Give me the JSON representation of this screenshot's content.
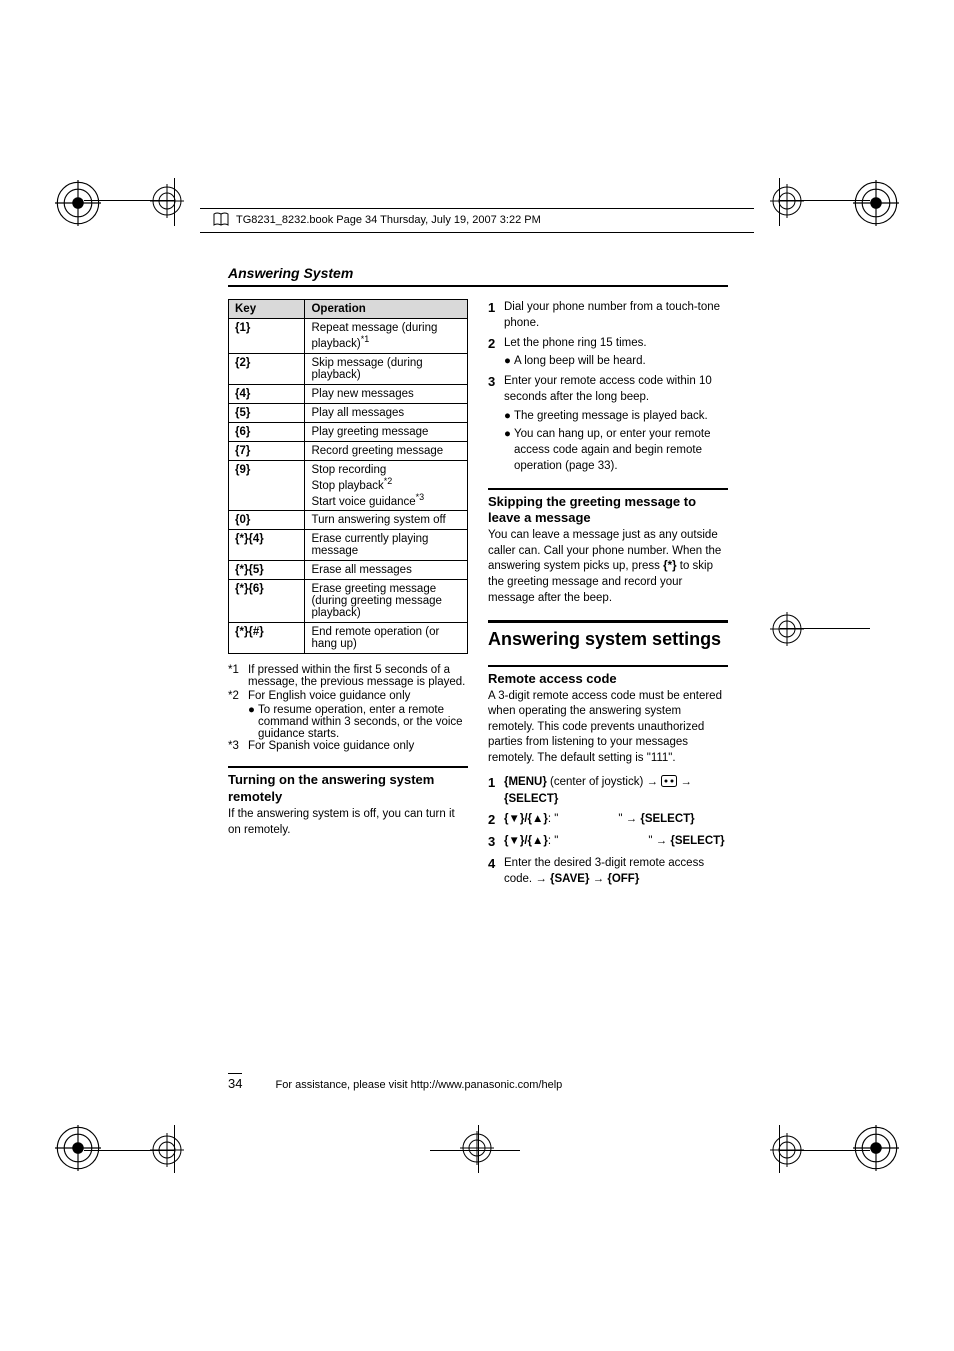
{
  "book_header": "TG8231_8232.book  Page 34  Thursday, July 19, 2007  3:22 PM",
  "section_title": "Answering System",
  "table": {
    "head_key": "Key",
    "head_op": "Operation",
    "rows": [
      {
        "key": "{1}",
        "op_html": "Repeat message (during playback)<span class='sup'>*1</span>"
      },
      {
        "key": "{2}",
        "op_html": "Skip message (during playback)"
      },
      {
        "key": "{4}",
        "op_html": "Play new messages"
      },
      {
        "key": "{5}",
        "op_html": "Play all messages"
      },
      {
        "key": "{6}",
        "op_html": "Play greeting message"
      },
      {
        "key": "{7}",
        "op_html": "Record greeting message"
      },
      {
        "key": "{9}",
        "op_html": "Stop recording<br>Stop playback<span class='sup'>*2</span><br>Start voice guidance<span class='sup'>*3</span>"
      },
      {
        "key": "{0}",
        "op_html": "Turn answering system off"
      },
      {
        "key": "{*}{4}",
        "op_html": "Erase currently playing message"
      },
      {
        "key": "{*}{5}",
        "op_html": "Erase all messages"
      },
      {
        "key": "{*}{6}",
        "op_html": "Erase greeting message (during greeting message playback)"
      },
      {
        "key": "{*}{#}",
        "op_html": "End remote operation (or hang up)"
      }
    ]
  },
  "footnotes": {
    "f1_tag": "*1",
    "f1": "If pressed within the first 5 seconds of a message, the previous message is played.",
    "f2_tag": "*2",
    "f2": "For English voice guidance only",
    "f2_sub": "To resume operation, enter a remote command within 3 seconds, or the voice guidance starts.",
    "f3_tag": "*3",
    "f3": "For Spanish voice guidance only"
  },
  "left_h3": "Turning on the answering system remotely",
  "left_para": "If the answering system is off, you can turn it on remotely.",
  "right_steps_a": {
    "s1": "Dial your phone number from a touch-tone phone.",
    "s2": "Let the phone ring 15 times.",
    "s2_sub": "A long beep will be heard.",
    "s3": "Enter your remote access code within 10 seconds after the long beep.",
    "s3_sub1": "The greeting message is played back.",
    "s3_sub2": "You can hang up, or enter your remote access code again and begin remote operation (page 33)."
  },
  "skip_h3": "Skipping the greeting message to leave a message",
  "skip_para_html": "You can leave a message just as any outside caller can. Call your phone number. When the answering system picks up, press <span class='keycell'>{*}</span> to skip the greeting message and record your message after the beep.",
  "h2": "Answering system settings",
  "rac_h3": "Remote access code",
  "rac_para": "A 3-digit remote access code must be entered when operating the answering system remotely. This code prevents unauthorized parties from listening to your messages remotely. The default setting is \"111\".",
  "right_steps_b": {
    "s1_html": "<span class='menukey'>{MENU}</span> (center of joystick) <span class='arrow'>&rarr;</span> <svg width='16' height='12' style='vertical-align:-2px'><rect x='0.5' y='0.5' width='15' height='11' rx='2' fill='none' stroke='#000'/><circle cx='5' cy='6' r='1.5' fill='#000'/><circle cx='11' cy='6' r='1.5' fill='#000'/></svg> <span class='arrow'>&rarr;</span> <span class='menukey'>{SELECT}</span>",
    "s2_html": "<span class='udkey'>{&#9660;}/{&#9650;}</span>: \"<span style='display:inline-block;width:60px'></span>\" <span class='arrow'>&rarr;</span> <span class='menukey'>{SELECT}</span>",
    "s3_html": "<span class='udkey'>{&#9660;}/{&#9650;}</span>: \"<span style='display:inline-block;width:90px'></span>\" <span class='arrow'>&rarr;</span> <span class='menukey'>{SELECT}</span>",
    "s4_html": "Enter the desired 3-digit remote access code. <span class='arrow'>&rarr;</span> <span class='menukey'>{SAVE}</span> <span class='arrow'>&rarr;</span> <span class='menukey'>{OFF}</span>"
  },
  "page_num": "34",
  "assist": "For assistance, please visit http://www.panasonic.com/help"
}
